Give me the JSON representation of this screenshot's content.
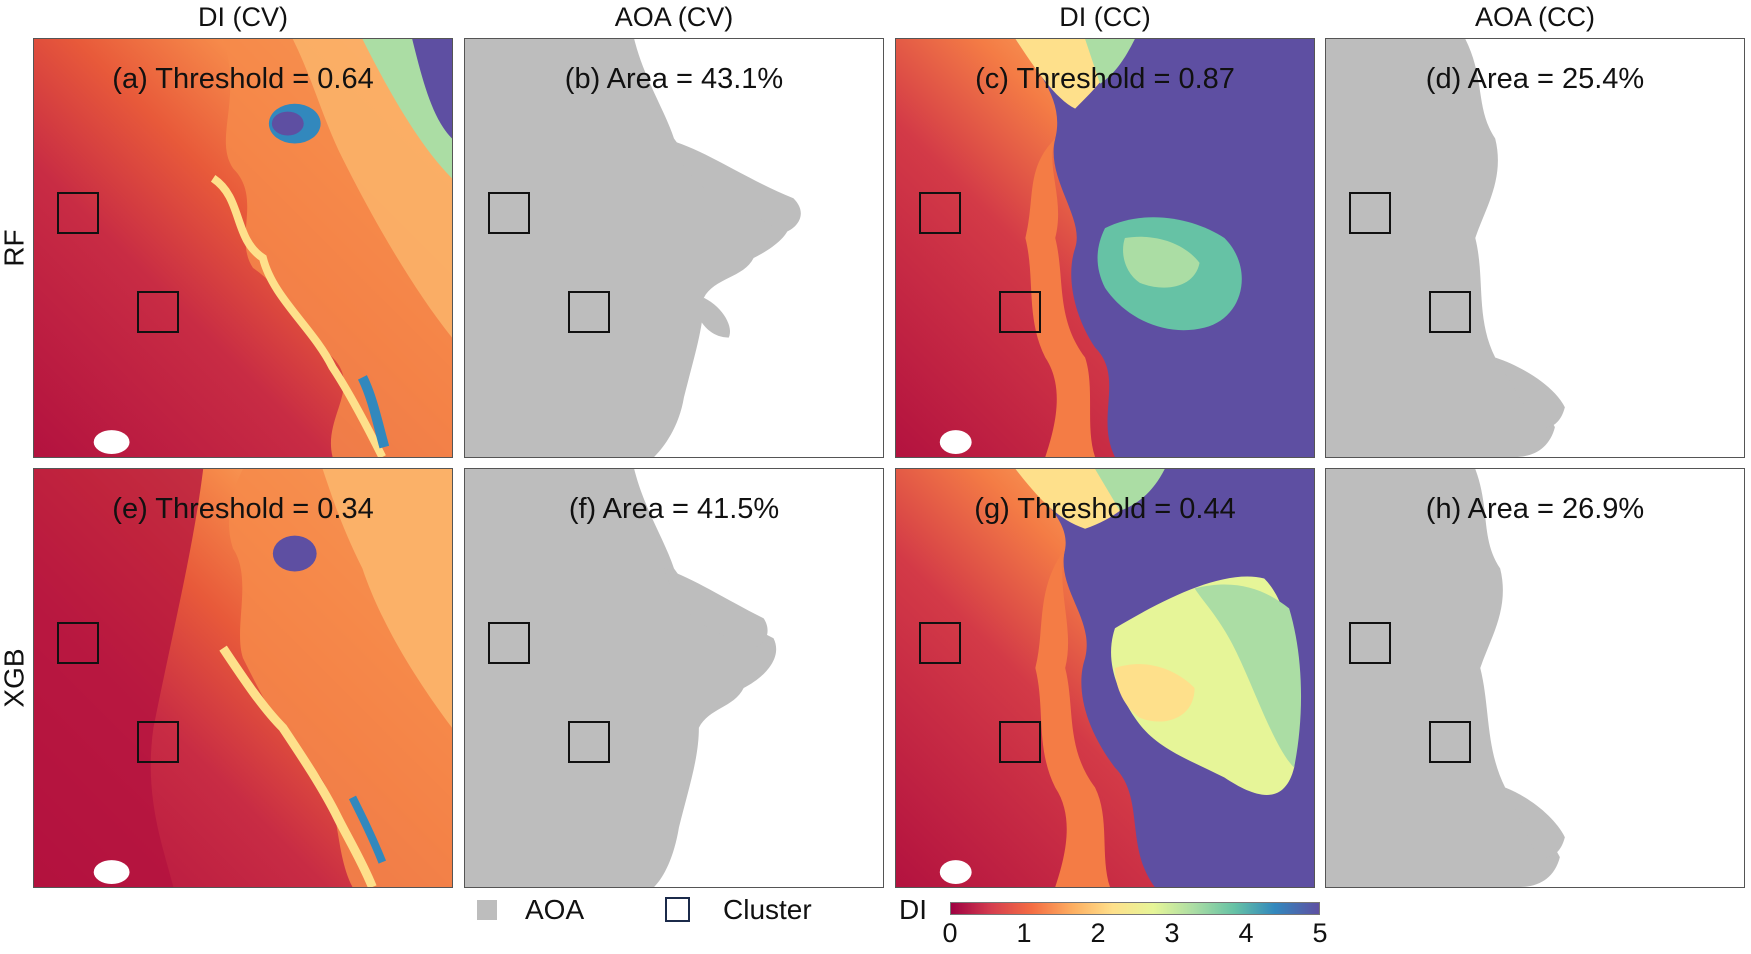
{
  "columns": [
    {
      "title": "DI (CV)"
    },
    {
      "title": "AOA (CV)"
    },
    {
      "title": "DI (CC)"
    },
    {
      "title": "AOA (CC)"
    }
  ],
  "rows": [
    {
      "title": "RF"
    },
    {
      "title": "XGB"
    }
  ],
  "panels": {
    "a": {
      "label": "(a) Threshold = 0.64",
      "type": "DI",
      "threshold": 0.64
    },
    "b": {
      "label": "(b) Area = 43.1%",
      "type": "AOA",
      "area_percent": 43.1
    },
    "c": {
      "label": "(c) Threshold = 0.87",
      "type": "DI",
      "threshold": 0.87
    },
    "d": {
      "label": "(d) Area = 25.4%",
      "type": "AOA",
      "area_percent": 25.4
    },
    "e": {
      "label": "(e) Threshold = 0.34",
      "type": "DI",
      "threshold": 0.34
    },
    "f": {
      "label": "(f) Area = 41.5%",
      "type": "AOA",
      "area_percent": 41.5
    },
    "g": {
      "label": "(g) Threshold = 0.44",
      "type": "DI",
      "threshold": 0.44
    },
    "h": {
      "label": "(h) Area = 26.9%",
      "type": "AOA",
      "area_percent": 26.9
    }
  },
  "legend": {
    "aoa_label": "AOA",
    "cluster_label": "Cluster",
    "di_label": "DI",
    "di_ticks": [
      "0",
      "1",
      "2",
      "3",
      "4",
      "5"
    ],
    "di_range": [
      0,
      5
    ]
  },
  "colors": {
    "aoa": "#bdbdbd",
    "cluster_box": "#111111",
    "di_scale": [
      "#9e0142",
      "#d53e4f",
      "#f46d43",
      "#fdae61",
      "#fee08b",
      "#e6f598",
      "#abdda4",
      "#66c2a5",
      "#3288bd",
      "#5e4fa2"
    ]
  }
}
